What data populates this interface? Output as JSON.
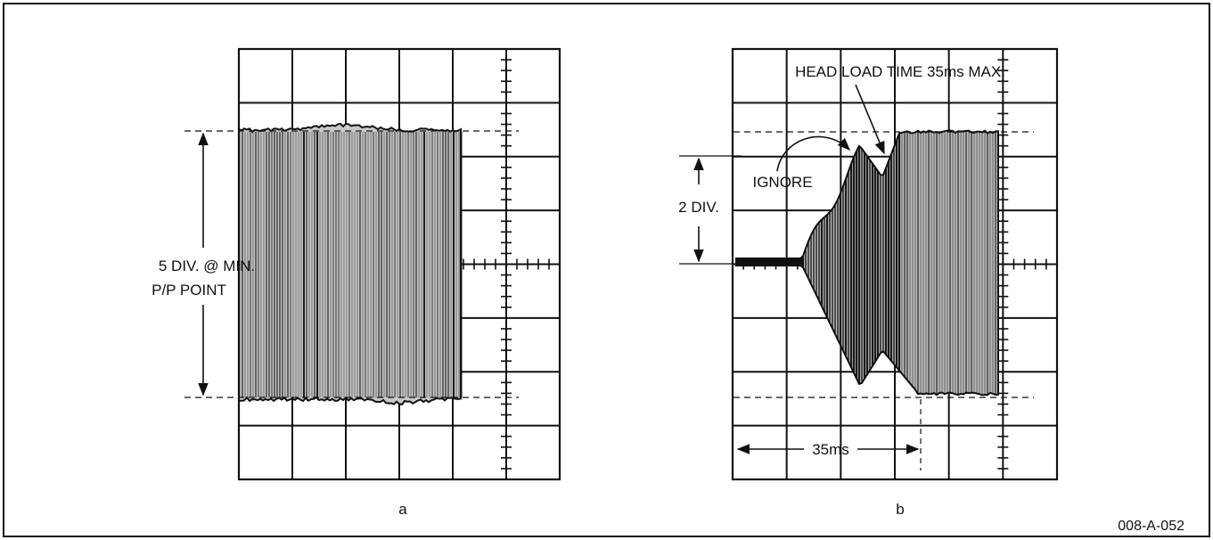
{
  "figure": {
    "id": "008-A-052",
    "ink_color": "#111111",
    "paper_color": "#ffffff"
  },
  "panel_a": {
    "label": "a",
    "amplitude_divisions": 5,
    "annotation_line1": "5 DIV. @ MIN.",
    "annotation_line2": "P/P POINT"
  },
  "panel_b": {
    "label": "b",
    "head_load_label": "HEAD LOAD TIME 35ms MAX.",
    "ignore_label": "IGNORE",
    "amplitude_label": "2 DIV.",
    "amplitude_divisions": 2,
    "time_label": "35ms",
    "time_ms": 35
  }
}
